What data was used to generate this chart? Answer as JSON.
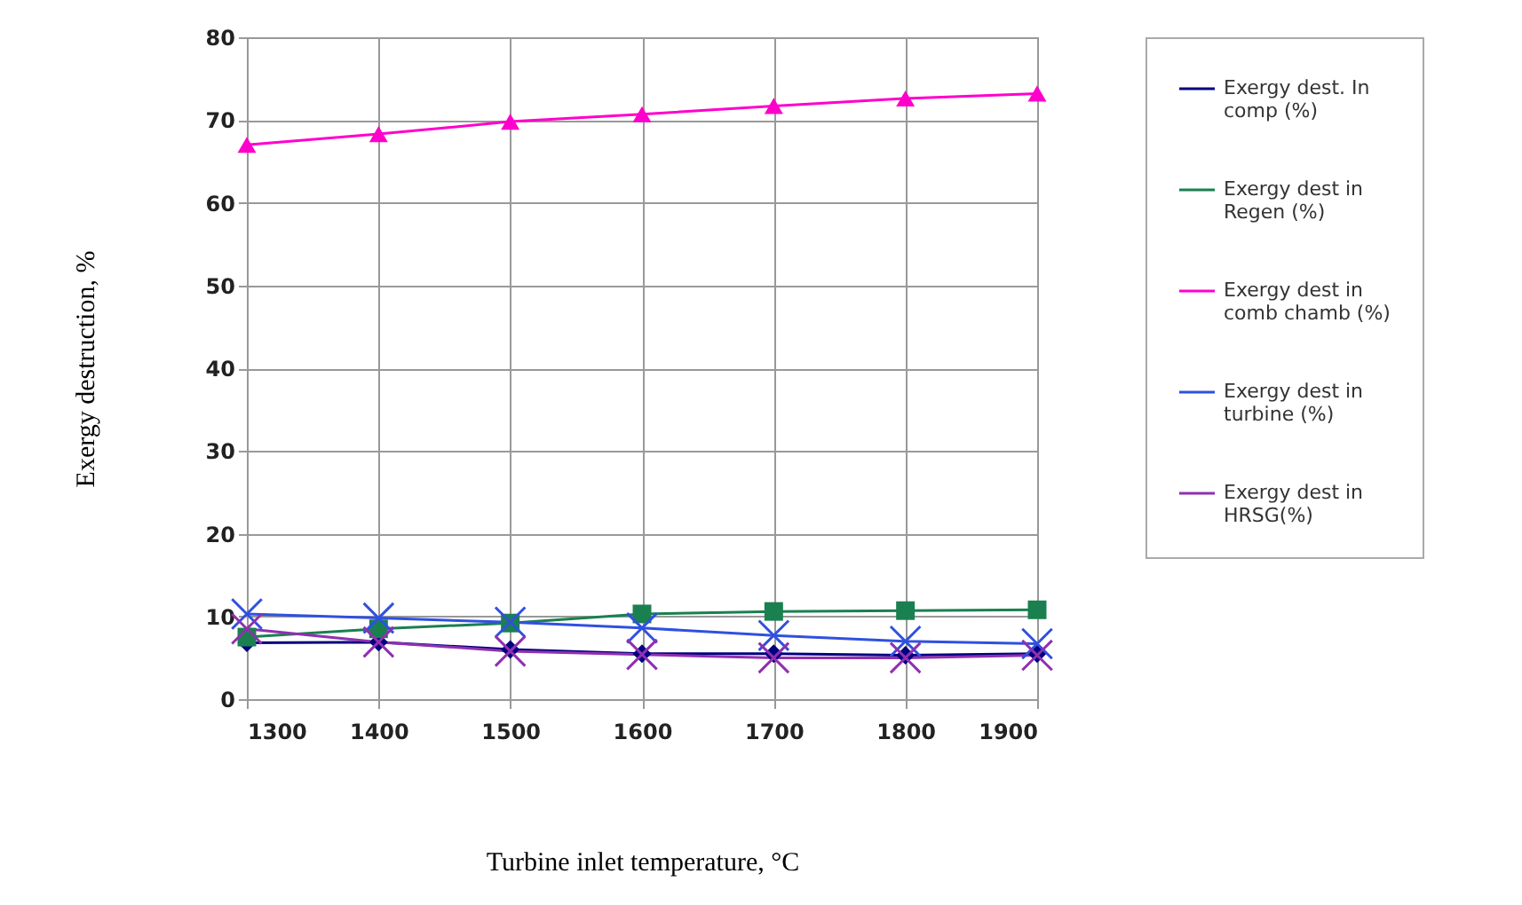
{
  "chart_data": {
    "type": "line",
    "xlabel": "Turbine inlet temperature, °C",
    "ylabel": "Exergy destruction, %",
    "x": [
      1300,
      1400,
      1500,
      1600,
      1700,
      1800,
      1900
    ],
    "xlim": [
      1300,
      1900
    ],
    "xticks": [
      1300,
      1400,
      1500,
      1600,
      1700,
      1800,
      1900
    ],
    "ylim": [
      0,
      80
    ],
    "yticks": [
      0,
      10,
      20,
      30,
      40,
      50,
      60,
      70,
      80
    ],
    "grid": true,
    "legend": "right",
    "series": [
      {
        "name": "Exergy dest. In comp (%)",
        "color": "#000080",
        "marker": "diamond",
        "values": [
          6.8,
          6.9,
          6.0,
          5.5,
          5.5,
          5.3,
          5.5
        ]
      },
      {
        "name": "Exergy dest in Regen (%)",
        "color": "#1a8050",
        "marker": "square",
        "values": [
          7.5,
          8.5,
          9.2,
          10.3,
          10.6,
          10.7,
          10.8
        ]
      },
      {
        "name": "Exergy dest in comb chamb (%)",
        "color": "#ff00cc",
        "marker": "triangle",
        "values": [
          67,
          68.3,
          69.8,
          70.7,
          71.7,
          72.6,
          73.2
        ]
      },
      {
        "name": "Exergy dest in turbine (%)",
        "color": "#3050e0",
        "marker": "cross",
        "values": [
          10.3,
          9.8,
          9.3,
          8.6,
          7.7,
          7.0,
          6.7
        ]
      },
      {
        "name": "Exergy dest in HRSG(%)",
        "color": "#9030b0",
        "marker": "cross",
        "values": [
          8.5,
          6.9,
          5.8,
          5.4,
          5.0,
          5.0,
          5.3
        ]
      }
    ]
  }
}
